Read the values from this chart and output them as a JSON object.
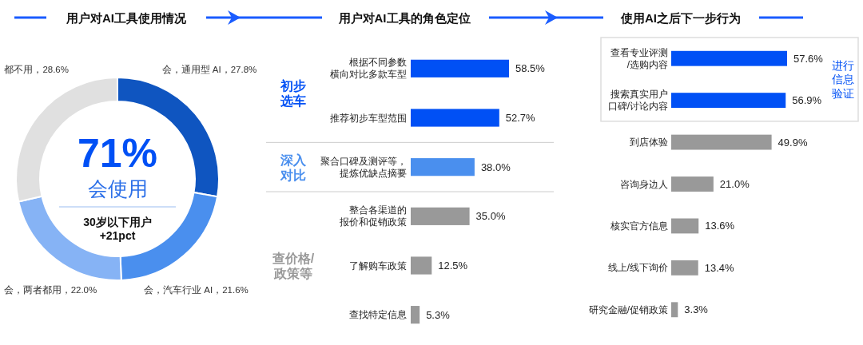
{
  "chart_data": [
    {
      "type": "donut",
      "title": "用户对AI工具使用情况",
      "categories": [
        "会，通用型 AI",
        "会，汽车行业 AI",
        "会，两者都用",
        "都不用"
      ],
      "values": [
        27.8,
        21.6,
        22.0,
        28.6
      ],
      "value_labels": [
        "27.8%",
        "21.6%",
        "22.0%",
        "28.6%"
      ],
      "colors": [
        "#0f55c0",
        "#4a8fee",
        "#86b3f5",
        "#e0e0e0"
      ],
      "annotations": [
        "71%",
        "会使用",
        "30岁以下用户+21pct"
      ]
    },
    {
      "type": "bar",
      "orientation": "horizontal",
      "title": "用户对AI工具的角色定位",
      "categories": [
        "根据不同参数横向对比多款车型",
        "推荐初步车型范围",
        "聚合口碑及测评等，提炼优缺点摘要",
        "整合各渠道的报价和促销政策",
        "了解购车政策",
        "查找特定信息"
      ],
      "values": [
        58.5,
        52.7,
        38.0,
        35.0,
        12.5,
        5.3
      ],
      "value_labels": [
        "58.5%",
        "52.7%",
        "38.0%",
        "35.0%",
        "12.5%",
        "5.3%"
      ],
      "colors": [
        "#0050f5",
        "#0050f5",
        "#4a8fee",
        "#999999",
        "#999999",
        "#999999"
      ],
      "tick_labels": "y",
      "annotations": [
        "初步选车",
        "深入对比",
        "查价格/政策等"
      ]
    },
    {
      "type": "bar",
      "orientation": "horizontal",
      "title": "使用AI之后下一步行为",
      "categories": [
        "查看专业评测/选购内容",
        "搜索真实用户口碑/讨论内容",
        "到店体验",
        "咨询身边人",
        "核实官方信息",
        "线上/线下询价",
        "研究金融/促销政策"
      ],
      "values": [
        57.6,
        56.9,
        49.9,
        21.0,
        13.6,
        13.4,
        3.3
      ],
      "value_labels": [
        "57.6%",
        "56.9%",
        "49.9%",
        "21.0%",
        "13.6%",
        "13.4%",
        "3.3%"
      ],
      "colors": [
        "#0050f5",
        "#0050f5",
        "#999999",
        "#999999",
        "#999999",
        "#999999",
        "#999999"
      ],
      "tick_labels": "y",
      "annotations": [
        "进行信息验证"
      ]
    }
  ]
}
